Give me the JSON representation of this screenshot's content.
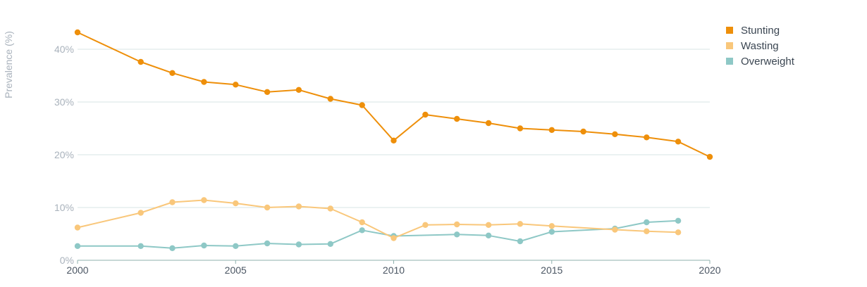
{
  "chart_data": {
    "type": "line",
    "title": "",
    "xlabel": "",
    "ylabel": "Prevalence (%)",
    "xlim": [
      2000,
      2020
    ],
    "ylim": [
      0,
      45
    ],
    "x_ticks": [
      2000,
      2005,
      2010,
      2015,
      2020
    ],
    "x_tick_labels": [
      "2000",
      "2005",
      "2010",
      "2015",
      "2020"
    ],
    "y_ticks": [
      0,
      10,
      20,
      30,
      40
    ],
    "y_tick_labels": [
      "0%",
      "10%",
      "20%",
      "30%",
      "40%"
    ],
    "grid": "horizontal",
    "legend_position": "top-right",
    "series": [
      {
        "name": "Stunting",
        "color": "#ee8f0a",
        "points": [
          [
            2000,
            43.2
          ],
          [
            2002,
            37.6
          ],
          [
            2003,
            35.5
          ],
          [
            2004,
            33.8
          ],
          [
            2005,
            33.3
          ],
          [
            2006,
            31.9
          ],
          [
            2007,
            32.3
          ],
          [
            2008,
            30.6
          ],
          [
            2009,
            29.4
          ],
          [
            2010,
            22.7
          ],
          [
            2011,
            27.6
          ],
          [
            2012,
            26.8
          ],
          [
            2013,
            26.0
          ],
          [
            2014,
            25.0
          ],
          [
            2015,
            24.7
          ],
          [
            2016,
            24.4
          ],
          [
            2017,
            23.9
          ],
          [
            2018,
            23.3
          ],
          [
            2019,
            22.5
          ],
          [
            2020,
            19.6
          ]
        ]
      },
      {
        "name": "Wasting",
        "color": "#f9c77b",
        "points": [
          [
            2000,
            6.2
          ],
          [
            2002,
            9.0
          ],
          [
            2003,
            11.0
          ],
          [
            2004,
            11.4
          ],
          [
            2005,
            10.8
          ],
          [
            2006,
            10.0
          ],
          [
            2007,
            10.2
          ],
          [
            2008,
            9.8
          ],
          [
            2009,
            7.2
          ],
          [
            2010,
            4.2
          ],
          [
            2011,
            6.7
          ],
          [
            2012,
            6.8
          ],
          [
            2013,
            6.7
          ],
          [
            2014,
            6.9
          ],
          [
            2015,
            6.5
          ],
          [
            2017,
            5.8
          ],
          [
            2018,
            5.5
          ],
          [
            2019,
            5.3
          ]
        ]
      },
      {
        "name": "Overweight",
        "color": "#8ec8c6",
        "points": [
          [
            2000,
            2.7
          ],
          [
            2002,
            2.7
          ],
          [
            2003,
            2.3
          ],
          [
            2004,
            2.8
          ],
          [
            2005,
            2.7
          ],
          [
            2006,
            3.2
          ],
          [
            2007,
            3.0
          ],
          [
            2008,
            3.1
          ],
          [
            2009,
            5.7
          ],
          [
            2010,
            4.6
          ],
          [
            2012,
            4.9
          ],
          [
            2013,
            4.7
          ],
          [
            2014,
            3.6
          ],
          [
            2015,
            5.4
          ],
          [
            2017,
            6.0
          ],
          [
            2018,
            7.2
          ],
          [
            2019,
            7.5
          ]
        ]
      }
    ]
  }
}
